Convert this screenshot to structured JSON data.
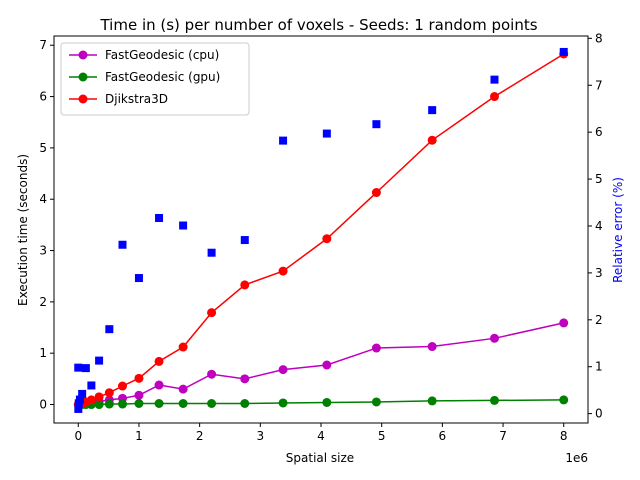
{
  "chart_data": {
    "type": "line",
    "title": "Time in (s) per number of voxels - Seeds: 1 random points",
    "xlabel": "Spatial size",
    "x_offset_text": "1e6",
    "ylabel_left": "Execution time (seconds)",
    "ylabel_right": "Relative error (%)",
    "xlim": [
      -400000,
      8400000
    ],
    "ylim_left": [
      -0.36,
      7.18
    ],
    "ylim_right": [
      -0.2,
      8.05
    ],
    "x_ticks": [
      0,
      1000000,
      2000000,
      3000000,
      4000000,
      5000000,
      6000000,
      7000000,
      8000000
    ],
    "x_tick_labels": [
      "0",
      "1",
      "2",
      "3",
      "4",
      "5",
      "6",
      "7",
      "8"
    ],
    "y_left_ticks": [
      0,
      1,
      2,
      3,
      4,
      5,
      6,
      7
    ],
    "y_left_tick_labels": [
      "0",
      "1",
      "2",
      "3",
      "4",
      "5",
      "6",
      "7"
    ],
    "y_right_ticks": [
      0,
      1,
      2,
      3,
      4,
      5,
      6,
      7,
      8
    ],
    "y_right_tick_labels": [
      "0",
      "1",
      "2",
      "3",
      "4",
      "5",
      "6",
      "7",
      "8"
    ],
    "grid": false,
    "legend_position": "top-left",
    "x": [
      1000,
      8000,
      27000,
      64000,
      125000,
      216000,
      343000,
      512000,
      729000,
      1000000,
      1331000,
      1728000,
      2197000,
      2744000,
      3375000,
      4096000,
      4913000,
      5832000,
      6859000,
      8000000
    ],
    "series": [
      {
        "name": "FastGeodesic (cpu)",
        "axis": "left",
        "color": "#bf00bf",
        "marker": "circle",
        "values": [
          0.0,
          0.0,
          0.0,
          0.01,
          0.02,
          0.04,
          0.06,
          0.09,
          0.12,
          0.18,
          0.38,
          0.3,
          0.59,
          0.5,
          0.68,
          0.77,
          1.1,
          1.13,
          1.29,
          1.59
        ]
      },
      {
        "name": "FastGeodesic (gpu)",
        "axis": "left",
        "color": "#008000",
        "marker": "circle",
        "values": [
          0.0,
          0.0,
          0.0,
          0.0,
          0.0,
          0.0,
          0.0,
          0.01,
          0.01,
          0.02,
          0.02,
          0.02,
          0.02,
          0.02,
          0.03,
          0.04,
          0.05,
          0.07,
          0.08,
          0.09
        ]
      },
      {
        "name": "Djikstra3D",
        "axis": "left",
        "color": "#ff0000",
        "marker": "circle",
        "values": [
          0.0,
          0.0,
          0.0,
          0.02,
          0.05,
          0.09,
          0.15,
          0.23,
          0.36,
          0.51,
          0.84,
          1.12,
          1.79,
          2.33,
          2.6,
          3.23,
          4.13,
          5.15,
          6.0,
          6.83
        ]
      },
      {
        "name": "",
        "axis": "right",
        "color": "#0000ff",
        "marker": "square",
        "line": false,
        "values": [
          0.1,
          0.22,
          0.3,
          0.42,
          0.97,
          0.6,
          1.13,
          1.8,
          3.6,
          2.89,
          4.17,
          4.01,
          3.43,
          3.7,
          5.82,
          5.97,
          6.17,
          6.47,
          7.12,
          7.71
        ]
      },
      {
        "name": "",
        "axis": "right",
        "color": "#0000ff",
        "marker": "square",
        "line": false,
        "x": [
          0
        ],
        "values": [
          0.98
        ]
      }
    ]
  }
}
